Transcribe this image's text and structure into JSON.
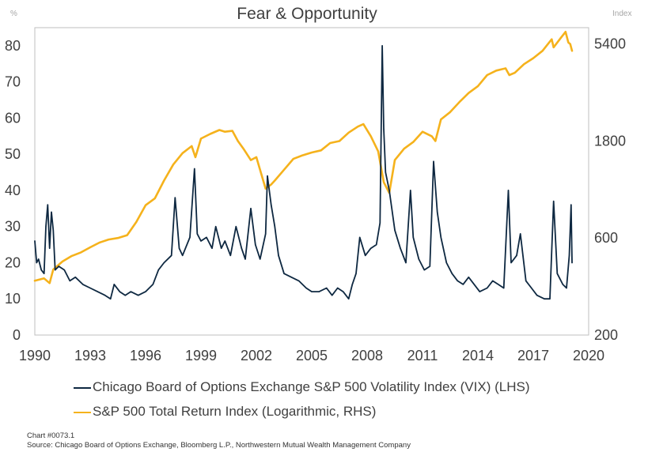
{
  "chart_data": {
    "type": "line",
    "title": "Fear & Opportunity",
    "y_left_unit": "%",
    "y_right_unit": "Index",
    "x_ticks": [
      "1990",
      "1993",
      "1996",
      "1999",
      "2002",
      "2005",
      "2008",
      "2011",
      "2014",
      "2017",
      "2020"
    ],
    "xlim": [
      1990,
      2020
    ],
    "y_left_ticks": [
      "0",
      "10",
      "20",
      "30",
      "40",
      "50",
      "60",
      "70",
      "80"
    ],
    "ylim_left": [
      0,
      85
    ],
    "y_right_ticks": [
      "200",
      "600",
      "1800",
      "5400"
    ],
    "y_right_scale": "log",
    "ylim_right": [
      200,
      6500
    ],
    "grid": false,
    "legend_position": "bottom",
    "series": [
      {
        "name": "Chicago Board of Options Exchange S&P 500 Volatility Index (VIX) (LHS)",
        "axis": "left",
        "color": "#0e2841",
        "x": [
          1990.0,
          1990.1,
          1990.2,
          1990.35,
          1990.5,
          1990.6,
          1990.7,
          1990.8,
          1990.9,
          1991.0,
          1991.1,
          1991.3,
          1991.6,
          1991.9,
          1992.2,
          1992.6,
          1993.0,
          1993.4,
          1993.8,
          1994.1,
          1994.3,
          1994.6,
          1994.9,
          1995.2,
          1995.6,
          1996.0,
          1996.4,
          1996.7,
          1997.0,
          1997.4,
          1997.6,
          1997.82,
          1998.0,
          1998.4,
          1998.65,
          1998.8,
          1999.0,
          1999.3,
          1999.6,
          1999.8,
          2000.1,
          2000.3,
          2000.6,
          2000.9,
          2001.2,
          2001.4,
          2001.7,
          2001.95,
          2002.2,
          2002.5,
          2002.6,
          2002.8,
          2003.0,
          2003.2,
          2003.5,
          2003.9,
          2004.3,
          2004.7,
          2005.0,
          2005.4,
          2005.8,
          2006.1,
          2006.4,
          2006.7,
          2007.0,
          2007.2,
          2007.4,
          2007.6,
          2007.9,
          2008.2,
          2008.5,
          2008.7,
          2008.82,
          2008.9,
          2009.0,
          2009.2,
          2009.5,
          2009.8,
          2010.1,
          2010.35,
          2010.5,
          2010.8,
          2011.1,
          2011.4,
          2011.6,
          2011.8,
          2012.0,
          2012.3,
          2012.6,
          2012.9,
          2013.2,
          2013.5,
          2013.8,
          2014.1,
          2014.5,
          2014.8,
          2015.1,
          2015.4,
          2015.65,
          2015.8,
          2016.1,
          2016.3,
          2016.6,
          2016.9,
          2017.2,
          2017.6,
          2017.9,
          2018.1,
          2018.3,
          2018.6,
          2018.8,
          2018.95,
          2019.05,
          2019.1
        ],
        "values": [
          26,
          20,
          21,
          18,
          17,
          30,
          36,
          24,
          34,
          29,
          18,
          19,
          18,
          15,
          16,
          14,
          13,
          12,
          11,
          10,
          14,
          12,
          11,
          12,
          11,
          12,
          14,
          18,
          20,
          22,
          38,
          24,
          22,
          27,
          46,
          28,
          26,
          27,
          24,
          30,
          24,
          26,
          22,
          30,
          24,
          21,
          35,
          25,
          21,
          28,
          44,
          36,
          30,
          22,
          17,
          16,
          15,
          13,
          12,
          12,
          13,
          11,
          13,
          12,
          10,
          14,
          17,
          27,
          22,
          24,
          25,
          31,
          80,
          57,
          45,
          40,
          29,
          24,
          20,
          40,
          27,
          21,
          18,
          19,
          48,
          34,
          27,
          20,
          17,
          15,
          14,
          16,
          14,
          12,
          13,
          15,
          14,
          13,
          40,
          20,
          22,
          28,
          15,
          13,
          11,
          10,
          10,
          37,
          17,
          14,
          13,
          22,
          36,
          20
        ],
        "value_labels": [
          "26",
          "20",
          "21",
          "18",
          "17",
          "30",
          "36",
          "24",
          "34",
          "29",
          "18",
          "19",
          "18",
          "15",
          "16",
          "14",
          "13",
          "12",
          "11",
          "10",
          "14",
          "12",
          "11",
          "12",
          "11",
          "12",
          "14",
          "18",
          "20",
          "22",
          "38",
          "24",
          "22",
          "27",
          "46",
          "28",
          "26",
          "27",
          "24",
          "30",
          "24",
          "26",
          "22",
          "30",
          "24",
          "21",
          "35",
          "25",
          "21",
          "28",
          "44",
          "36",
          "30",
          "22",
          "17",
          "16",
          "15",
          "13",
          "12",
          "12",
          "13",
          "11",
          "13",
          "12",
          "10",
          "14",
          "17",
          "27",
          "22",
          "24",
          "25",
          "31",
          "80",
          "57",
          "45",
          "40",
          "29",
          "24",
          "20",
          "40",
          "27",
          "21",
          "18",
          "19",
          "48",
          "34",
          "27",
          "20",
          "17",
          "15",
          "14",
          "16",
          "14",
          "12",
          "13",
          "15",
          "14",
          "13",
          "40",
          "20",
          "22",
          "28",
          "15",
          "13",
          "11",
          "10",
          "10",
          "37",
          "17",
          "14",
          "13",
          "22",
          "36",
          "20"
        ]
      },
      {
        "name": "S&P 500 Total Return Index (Logarithmic, RHS)",
        "axis": "right",
        "color": "#f5b21c",
        "x": [
          1990.0,
          1990.5,
          1990.8,
          1991.0,
          1991.5,
          1992.0,
          1992.5,
          1993.0,
          1993.5,
          1994.0,
          1994.5,
          1995.0,
          1995.5,
          1996.0,
          1996.5,
          1997.0,
          1997.5,
          1998.0,
          1998.5,
          1998.7,
          1999.0,
          1999.5,
          2000.0,
          2000.3,
          2000.7,
          2001.0,
          2001.3,
          2001.7,
          2002.0,
          2002.5,
          2002.8,
          2003.0,
          2003.5,
          2004.0,
          2004.5,
          2005.0,
          2005.5,
          2006.0,
          2006.5,
          2007.0,
          2007.5,
          2007.8,
          2008.2,
          2008.6,
          2008.9,
          2009.2,
          2009.5,
          2010.0,
          2010.5,
          2011.0,
          2011.5,
          2011.7,
          2012.0,
          2012.5,
          2013.0,
          2013.5,
          2014.0,
          2014.5,
          2015.0,
          2015.5,
          2015.7,
          2016.0,
          2016.5,
          2017.0,
          2017.5,
          2018.0,
          2018.1,
          2018.5,
          2018.75,
          2018.9,
          2019.0,
          2019.1
        ],
        "values": [
          370,
          380,
          360,
          420,
          460,
          490,
          510,
          540,
          570,
          590,
          600,
          620,
          720,
          870,
          940,
          1150,
          1380,
          1570,
          1700,
          1500,
          1850,
          1950,
          2040,
          2000,
          2020,
          1800,
          1650,
          1450,
          1500,
          1050,
          1100,
          1150,
          1300,
          1470,
          1530,
          1580,
          1620,
          1760,
          1800,
          1980,
          2120,
          2180,
          1900,
          1600,
          1130,
          1000,
          1450,
          1650,
          1780,
          2000,
          1900,
          1800,
          2300,
          2500,
          2800,
          3100,
          3350,
          3800,
          4000,
          4100,
          3800,
          3900,
          4300,
          4600,
          5000,
          5700,
          5200,
          5800,
          6200,
          5500,
          5400,
          5000
        ],
        "value_labels": [
          "370",
          "380",
          "360",
          "420",
          "460",
          "490",
          "510",
          "540",
          "570",
          "590",
          "600",
          "620",
          "720",
          "870",
          "940",
          "1150",
          "1380",
          "1570",
          "1700",
          "1500",
          "1850",
          "1950",
          "2040",
          "2000",
          "2020",
          "1800",
          "1650",
          "1450",
          "1500",
          "1050",
          "1100",
          "1150",
          "1300",
          "1470",
          "1530",
          "1580",
          "1620",
          "1760",
          "1800",
          "1980",
          "2120",
          "2180",
          "1900",
          "1600",
          "1130",
          "1000",
          "1450",
          "1650",
          "1780",
          "2000",
          "1900",
          "1800",
          "2300",
          "2500",
          "2800",
          "3100",
          "3350",
          "3800",
          "4000",
          "4100",
          "3800",
          "3900",
          "4300",
          "4600",
          "5000",
          "5700",
          "5200",
          "5800",
          "6200",
          "5500",
          "5400",
          "5000"
        ]
      }
    ]
  },
  "footer": {
    "chart_id": "Chart #0073.1",
    "source": "Source: Chicago Board of Options Exchange, Bloomberg L.P., Northwestern Mutual Wealth Management Company"
  }
}
